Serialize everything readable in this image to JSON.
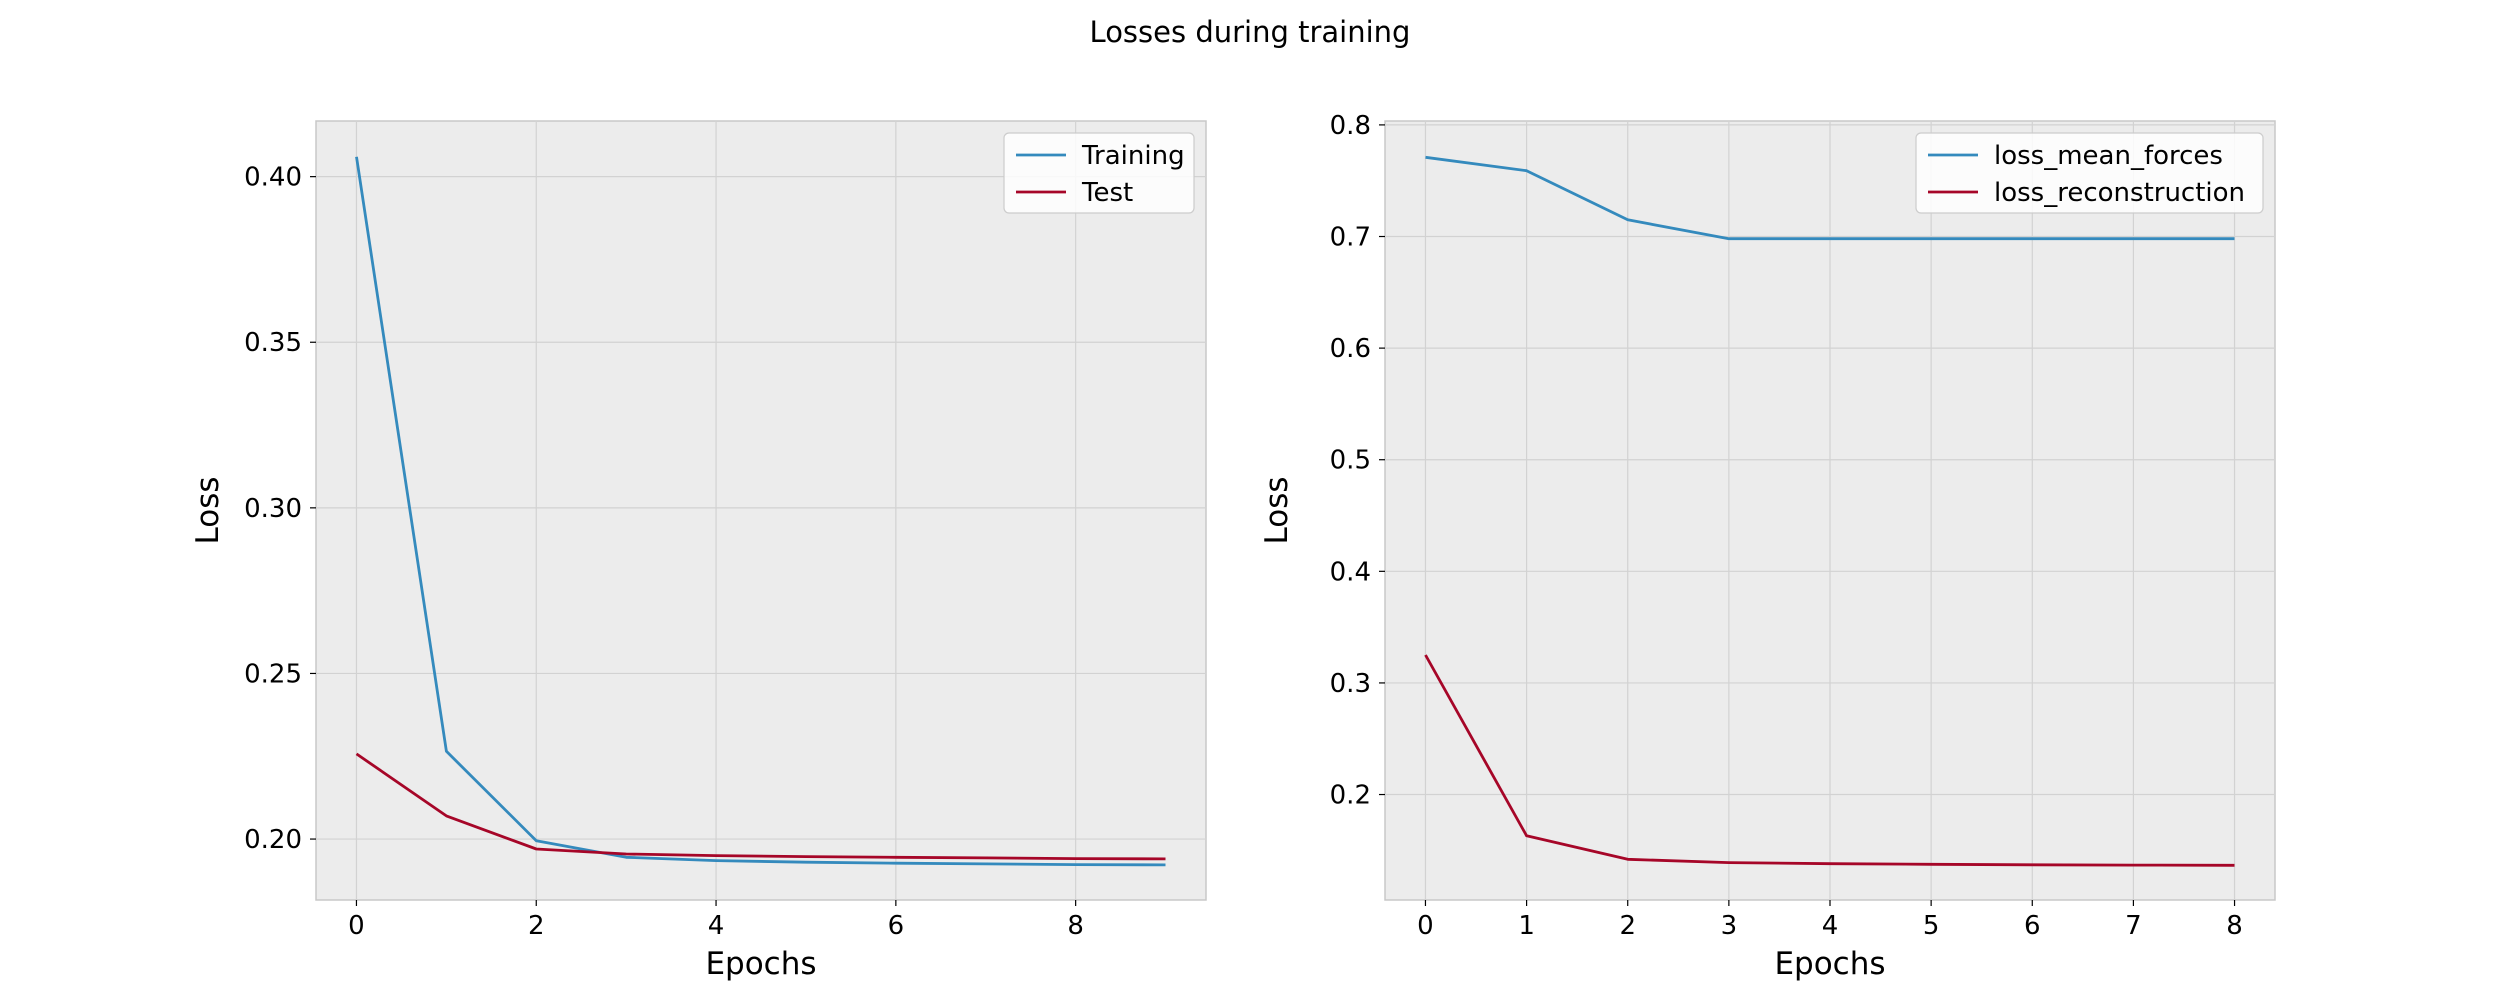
{
  "figure": {
    "suptitle": "Losses during training"
  },
  "chart_data": [
    {
      "type": "line",
      "title": "",
      "xlabel": "Epochs",
      "ylabel": "Loss",
      "x": [
        0,
        1,
        2,
        3,
        4,
        5,
        6,
        7,
        8,
        9
      ],
      "xlim": [
        -0.45,
        9.45
      ],
      "ylim": [
        0.1816,
        0.4168
      ],
      "xticks": [
        0,
        2,
        4,
        6,
        8
      ],
      "xtick_labels": [
        "0",
        "2",
        "4",
        "6",
        "8"
      ],
      "yticks": [
        0.2,
        0.25,
        0.3,
        0.35,
        0.4
      ],
      "ytick_labels": [
        "0.20",
        "0.25",
        "0.30",
        "0.35",
        "0.40"
      ],
      "grid": true,
      "legend_position": "top-right",
      "series": [
        {
          "name": "Training",
          "color": "#348abd",
          "values": [
            0.406,
            0.2265,
            0.1995,
            0.1945,
            0.1935,
            0.193,
            0.1927,
            0.1925,
            0.1923,
            0.1922
          ]
        },
        {
          "name": "Test",
          "color": "#a60628",
          "values": [
            0.2257,
            0.207,
            0.197,
            0.1955,
            0.195,
            0.1947,
            0.1945,
            0.1943,
            0.1941,
            0.194
          ]
        }
      ]
    },
    {
      "type": "line",
      "title": "",
      "xlabel": "Epochs",
      "ylabel": "Loss",
      "x": [
        0,
        1,
        2,
        3,
        4,
        5,
        6,
        7,
        8
      ],
      "xlim": [
        -0.4,
        8.4
      ],
      "ylim": [
        0.1055,
        0.8035
      ],
      "xticks": [
        0,
        1,
        2,
        3,
        4,
        5,
        6,
        7,
        8
      ],
      "xtick_labels": [
        "0",
        "1",
        "2",
        "3",
        "4",
        "5",
        "6",
        "7",
        "8"
      ],
      "yticks": [
        0.2,
        0.3,
        0.4,
        0.5,
        0.6,
        0.7,
        0.8
      ],
      "ytick_labels": [
        "0.2",
        "0.3",
        "0.4",
        "0.5",
        "0.6",
        "0.7",
        "0.8"
      ],
      "grid": true,
      "legend_position": "top-right",
      "series": [
        {
          "name": "loss_mean_forces",
          "color": "#348abd",
          "values": [
            0.771,
            0.759,
            0.715,
            0.698,
            0.698,
            0.698,
            0.698,
            0.698,
            0.698
          ]
        },
        {
          "name": "loss_reconstruction",
          "color": "#a60628",
          "values": [
            0.325,
            0.163,
            0.142,
            0.139,
            0.138,
            0.1375,
            0.137,
            0.1368,
            0.1366
          ]
        }
      ]
    }
  ]
}
